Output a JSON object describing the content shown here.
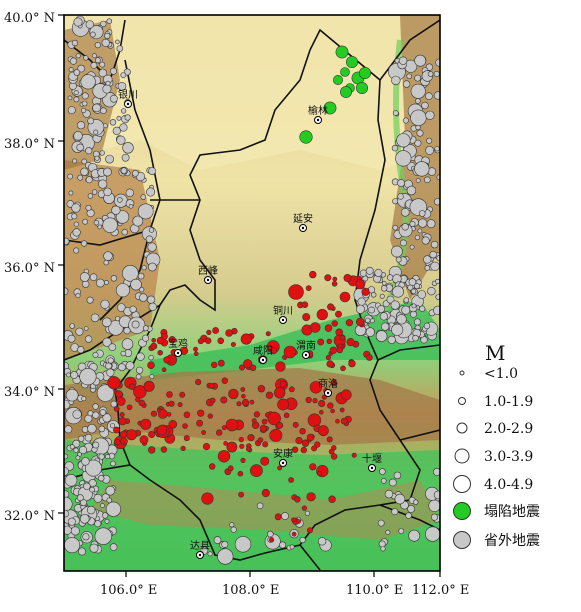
{
  "map": {
    "lat_labels": [
      "40.0° N",
      "38.0° N",
      "36.0° N",
      "34.0° N",
      "32.0° N"
    ],
    "lon_labels": [
      "106.0° E",
      "108.0° E",
      "110.0° E",
      "112.0° E"
    ]
  },
  "cities": [
    {
      "name": "银川"
    },
    {
      "name": "榆林"
    },
    {
      "name": "延安"
    },
    {
      "name": "西峰"
    },
    {
      "name": "铜川"
    },
    {
      "name": "宝鸡"
    },
    {
      "name": "咸阳"
    },
    {
      "name": "渭南"
    },
    {
      "name": "商洛"
    },
    {
      "name": "安康"
    },
    {
      "name": "十堰"
    },
    {
      "name": "达县"
    }
  ],
  "legend": {
    "title": "M",
    "items": [
      {
        "label": "<1.0",
        "kind": "magnitude",
        "color": "#ffffff"
      },
      {
        "label": "1.0-1.9",
        "kind": "magnitude",
        "color": "#ffffff"
      },
      {
        "label": "2.0-2.9",
        "kind": "magnitude",
        "color": "#ffffff"
      },
      {
        "label": "3.0-3.9",
        "kind": "magnitude",
        "color": "#ffffff"
      },
      {
        "label": "4.0-4.9",
        "kind": "magnitude",
        "color": "#ffffff"
      },
      {
        "label": "塌陷地震",
        "kind": "collapse",
        "color": "#22cc22"
      },
      {
        "label": "省外地震",
        "kind": "outside",
        "color": "#c8c8c8"
      }
    ]
  },
  "colors": {
    "in_province": "#e01010",
    "collapse": "#22cc22",
    "outside": "#c8c8c8"
  }
}
